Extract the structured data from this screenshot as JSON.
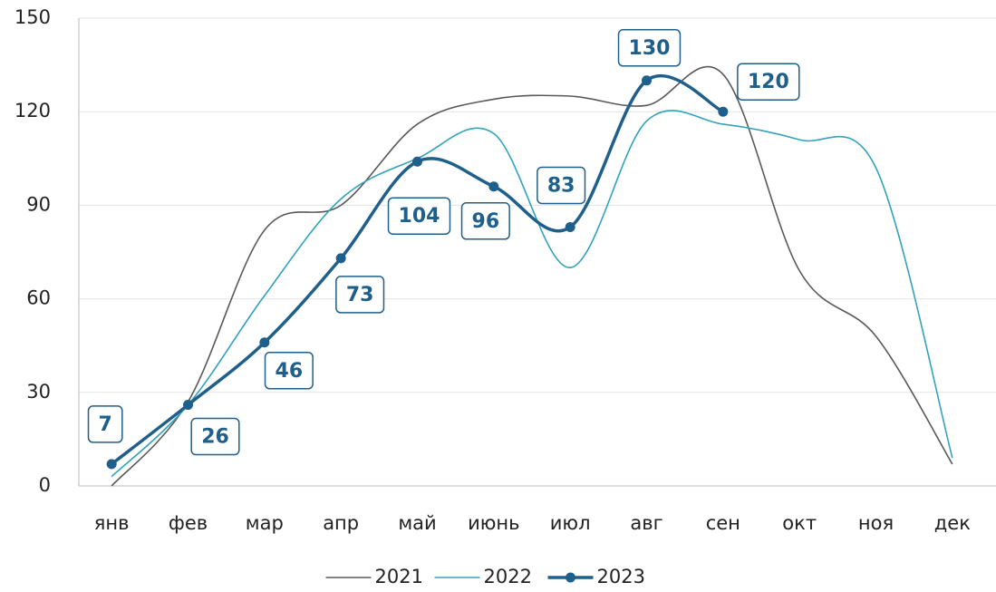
{
  "chart_data": {
    "type": "line",
    "categories": [
      "янв",
      "фев",
      "мар",
      "апр",
      "май",
      "июнь",
      "июл",
      "авг",
      "сен",
      "окт",
      "ноя",
      "дек"
    ],
    "series": [
      {
        "name": "2021",
        "color": "#595959",
        "values": [
          0,
          27,
          82,
          90,
          116,
          124,
          125,
          122,
          132,
          69,
          48,
          7
        ]
      },
      {
        "name": "2022",
        "color": "#31a3bd",
        "values": [
          3,
          26,
          61,
          92,
          105,
          113,
          70,
          117,
          116,
          111,
          102,
          9
        ]
      },
      {
        "name": "2023",
        "color": "#1f5f8b",
        "values": [
          7,
          26,
          46,
          73,
          104,
          96,
          83,
          130,
          120,
          null,
          null,
          null
        ],
        "markers": true,
        "data_labels": true
      }
    ],
    "ylim": [
      0,
      150
    ],
    "yticks": [
      0,
      30,
      60,
      90,
      120,
      150
    ],
    "grid": true,
    "legend": "bottom"
  }
}
